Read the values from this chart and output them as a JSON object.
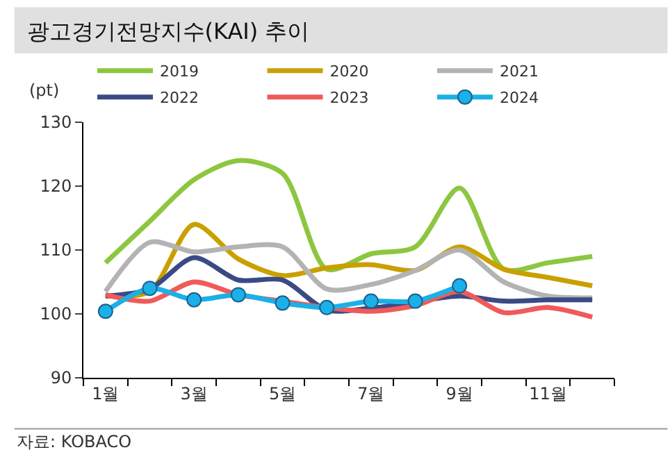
{
  "chart_data": {
    "type": "line",
    "title": "광고경기전망지수(KAI) 추이",
    "ylabel": "(pt)",
    "categories": [
      "1월",
      null,
      "3월",
      null,
      "5월",
      null,
      "7월",
      null,
      "9월",
      null,
      "11월",
      null
    ],
    "series": [
      {
        "name": "2019",
        "color": "#8dc63f",
        "values": [
          108,
          114.5,
          121,
          124,
          122,
          107,
          109.4,
          110.5,
          119.7,
          107,
          108,
          109
        ]
      },
      {
        "name": "2020",
        "color": "#c9a000",
        "values": [
          102.8,
          103.5,
          114,
          108.6,
          106,
          107.2,
          107.7,
          106.8,
          110.5,
          107,
          105.7,
          104.4
        ]
      },
      {
        "name": "2021",
        "color": "#b3b3b3",
        "values": [
          103.5,
          111.2,
          109.7,
          110.5,
          110.5,
          103.9,
          104.6,
          106.8,
          110,
          105,
          102.8,
          102.5
        ]
      },
      {
        "name": "2022",
        "color": "#3a4a85",
        "values": [
          102.8,
          103.9,
          108.8,
          105.3,
          105.3,
          100.6,
          100.9,
          101.9,
          102.8,
          102,
          102.2,
          102.2
        ]
      },
      {
        "name": "2023",
        "color": "#f05a5a",
        "values": [
          103,
          102,
          105,
          103,
          102,
          101,
          100.4,
          101.3,
          103.5,
          100.2,
          101,
          99.5
        ]
      },
      {
        "name": "2024",
        "color": "#1ab0e8",
        "marker": "circle",
        "values": [
          100.4,
          104,
          102.2,
          103,
          101.7,
          101,
          102,
          102,
          104.4,
          null,
          null,
          null
        ]
      }
    ],
    "ylim": [
      90,
      130
    ],
    "yticks": [
      90,
      100,
      110,
      120,
      130
    ],
    "legend": "top",
    "marker": "none",
    "line_style": "solid",
    "annotations": [
      "자료: KOBACO"
    ]
  }
}
